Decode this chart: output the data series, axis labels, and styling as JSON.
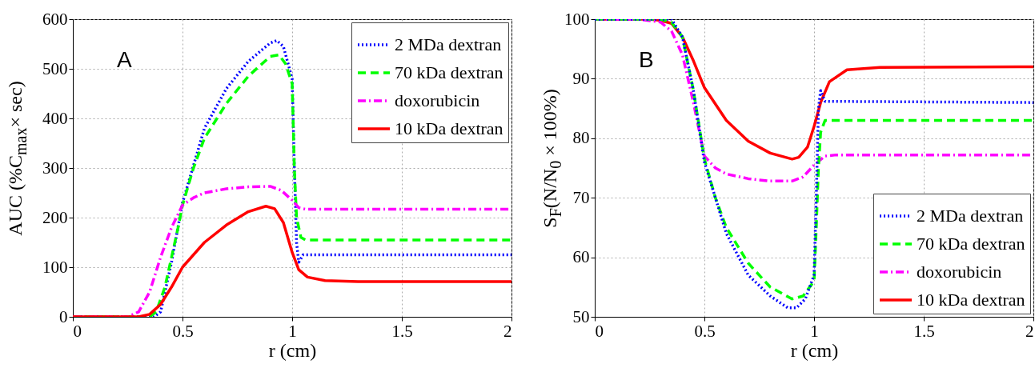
{
  "chart_data": [
    {
      "type": "line",
      "xlabel": "r (cm)",
      "ylabel": "AUC (%C$_{max}$× sec)",
      "annotations": [
        "A"
      ],
      "xlim": [
        0,
        2
      ],
      "xticks": [
        0,
        0.5,
        1,
        1.5,
        2
      ],
      "ylim": [
        0,
        600
      ],
      "yticks": [
        0,
        100,
        200,
        300,
        400,
        500,
        600
      ],
      "grid": true,
      "legend": "top right",
      "series": [
        {
          "name": "2 MDa dextran",
          "color": "#0000ff",
          "line_style": "dotted",
          "x": [
            0,
            0.37,
            0.4,
            0.45,
            0.5,
            0.6,
            0.7,
            0.8,
            0.9,
            0.93,
            0.96,
            1.0,
            1.01,
            1.02,
            1.03,
            1.05,
            2
          ],
          "values": [
            0,
            0,
            10,
            110,
            230,
            380,
            460,
            515,
            552,
            557,
            545,
            480,
            300,
            150,
            110,
            125,
            125
          ]
        },
        {
          "name": "70 kDa dextran",
          "color": "#00ff00",
          "line_style": "dashed",
          "x": [
            0,
            0.35,
            0.38,
            0.42,
            0.45,
            0.48,
            0.5,
            0.55,
            0.6,
            0.7,
            0.8,
            0.9,
            0.94,
            0.97,
            1.0,
            1.01,
            1.02,
            1.04,
            1.06,
            2
          ],
          "values": [
            0,
            0,
            10,
            60,
            120,
            180,
            225,
            300,
            360,
            430,
            485,
            525,
            528,
            510,
            470,
            300,
            200,
            160,
            155,
            155
          ]
        },
        {
          "name": "doxorubicin",
          "color": "#ff00ff",
          "line_style": "dashdot",
          "x": [
            0,
            0.25,
            0.3,
            0.35,
            0.4,
            0.45,
            0.5,
            0.55,
            0.6,
            0.7,
            0.8,
            0.9,
            0.95,
            1.0,
            1.03,
            1.06,
            2
          ],
          "values": [
            0,
            0,
            10,
            50,
            120,
            180,
            225,
            240,
            250,
            258,
            262,
            263,
            255,
            235,
            220,
            217,
            217
          ]
        },
        {
          "name": "10 kDa dextran",
          "color": "#ff0000",
          "line_style": "solid",
          "x": [
            0,
            0.3,
            0.35,
            0.4,
            0.45,
            0.5,
            0.6,
            0.7,
            0.8,
            0.88,
            0.92,
            0.96,
            1.0,
            1.03,
            1.07,
            1.15,
            1.3,
            2
          ],
          "values": [
            0,
            0,
            5,
            25,
            60,
            100,
            150,
            185,
            212,
            223,
            218,
            190,
            130,
            95,
            80,
            73,
            71,
            71
          ]
        }
      ]
    },
    {
      "type": "line",
      "xlabel": "r (cm)",
      "ylabel": "S$_{F}$(N/N$_{0}$ × 100%)",
      "annotations": [
        "B"
      ],
      "xlim": [
        0,
        2
      ],
      "xticks": [
        0,
        0.5,
        1,
        1.5,
        2
      ],
      "ylim": [
        50,
        100
      ],
      "yticks": [
        50,
        60,
        70,
        80,
        90,
        100
      ],
      "grid": true,
      "legend": "bottom right",
      "series": [
        {
          "name": "10 kDa dextran",
          "color": "#ff0000",
          "line_style": "solid",
          "x": [
            0,
            0.25,
            0.3,
            0.35,
            0.4,
            0.45,
            0.5,
            0.6,
            0.7,
            0.8,
            0.9,
            0.93,
            0.97,
            1.0,
            1.03,
            1.07,
            1.15,
            1.3,
            2
          ],
          "values": [
            100,
            100,
            99.8,
            99.3,
            97,
            93,
            88.5,
            83,
            79.5,
            77.5,
            76.5,
            76.8,
            78.5,
            82,
            86,
            89.5,
            91.5,
            91.9,
            92
          ]
        },
        {
          "name": "doxorubicin",
          "color": "#ff00ff",
          "line_style": "dashdot",
          "x": [
            0,
            0.2,
            0.3,
            0.35,
            0.4,
            0.45,
            0.5,
            0.55,
            0.6,
            0.7,
            0.8,
            0.9,
            0.95,
            1.0,
            1.05,
            1.1,
            2
          ],
          "values": [
            100,
            100,
            99.5,
            98,
            94,
            86,
            77,
            75,
            74,
            73.2,
            72.8,
            72.8,
            73.5,
            75.5,
            77,
            77.2,
            77.2
          ]
        },
        {
          "name": "70 kDa dextran",
          "color": "#00ff00",
          "line_style": "dashed",
          "x": [
            0,
            0.3,
            0.35,
            0.4,
            0.45,
            0.5,
            0.55,
            0.6,
            0.7,
            0.8,
            0.9,
            0.95,
            1.0,
            1.01,
            1.02,
            1.03,
            1.05,
            2
          ],
          "values": [
            100,
            100,
            99.5,
            97,
            88,
            76.5,
            70,
            65,
            59,
            55,
            53,
            53.5,
            56,
            65,
            75,
            81,
            83,
            83
          ]
        },
        {
          "name": "2 MDa dextran",
          "color": "#0000ff",
          "line_style": "dotted",
          "x": [
            0,
            0.35,
            0.4,
            0.45,
            0.5,
            0.6,
            0.7,
            0.8,
            0.88,
            0.92,
            0.96,
            1.0,
            1.01,
            1.02,
            1.03,
            1.05,
            2
          ],
          "values": [
            100,
            100,
            97,
            88,
            76,
            64,
            57,
            53.5,
            51.5,
            51.5,
            53,
            57,
            70,
            85,
            88,
            86.2,
            86
          ]
        }
      ]
    }
  ]
}
